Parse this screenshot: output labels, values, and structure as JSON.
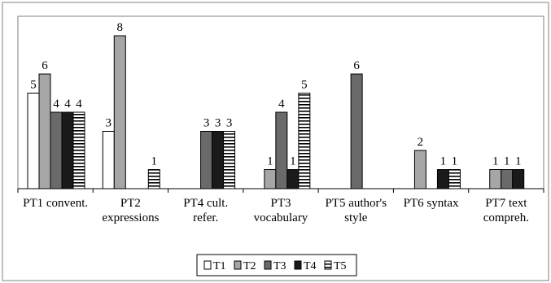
{
  "chart_data": {
    "type": "bar",
    "categories": [
      [
        "PT1 convent."
      ],
      [
        "PT2",
        "expressions"
      ],
      [
        "PT4 cult.",
        "refer."
      ],
      [
        "PT3",
        "vocabulary"
      ],
      [
        "PT5 author's",
        "style"
      ],
      [
        "PT6 syntax"
      ],
      [
        "PT7 text",
        "compreh."
      ]
    ],
    "series": [
      {
        "name": "T1",
        "values": [
          5,
          3,
          null,
          null,
          null,
          null,
          null
        ],
        "pattern": "white"
      },
      {
        "name": "T2",
        "values": [
          6,
          8,
          null,
          1,
          null,
          2,
          1
        ],
        "pattern": "light-gray"
      },
      {
        "name": "T3",
        "values": [
          4,
          null,
          3,
          4,
          6,
          null,
          1
        ],
        "pattern": "dark-gray"
      },
      {
        "name": "T4",
        "values": [
          4,
          null,
          3,
          1,
          null,
          1,
          1
        ],
        "pattern": "black"
      },
      {
        "name": "T5",
        "values": [
          4,
          1,
          3,
          5,
          null,
          1,
          null
        ],
        "pattern": "horizontal-stripes"
      }
    ],
    "ylim": [
      0,
      8
    ],
    "grid": false,
    "legend_position": "bottom-center",
    "colors": {
      "white": "#ffffff",
      "light-gray": "#a6a6a6",
      "dark-gray": "#6a6a6a",
      "black": "#1a1a1a",
      "stripe": "#000000"
    }
  }
}
